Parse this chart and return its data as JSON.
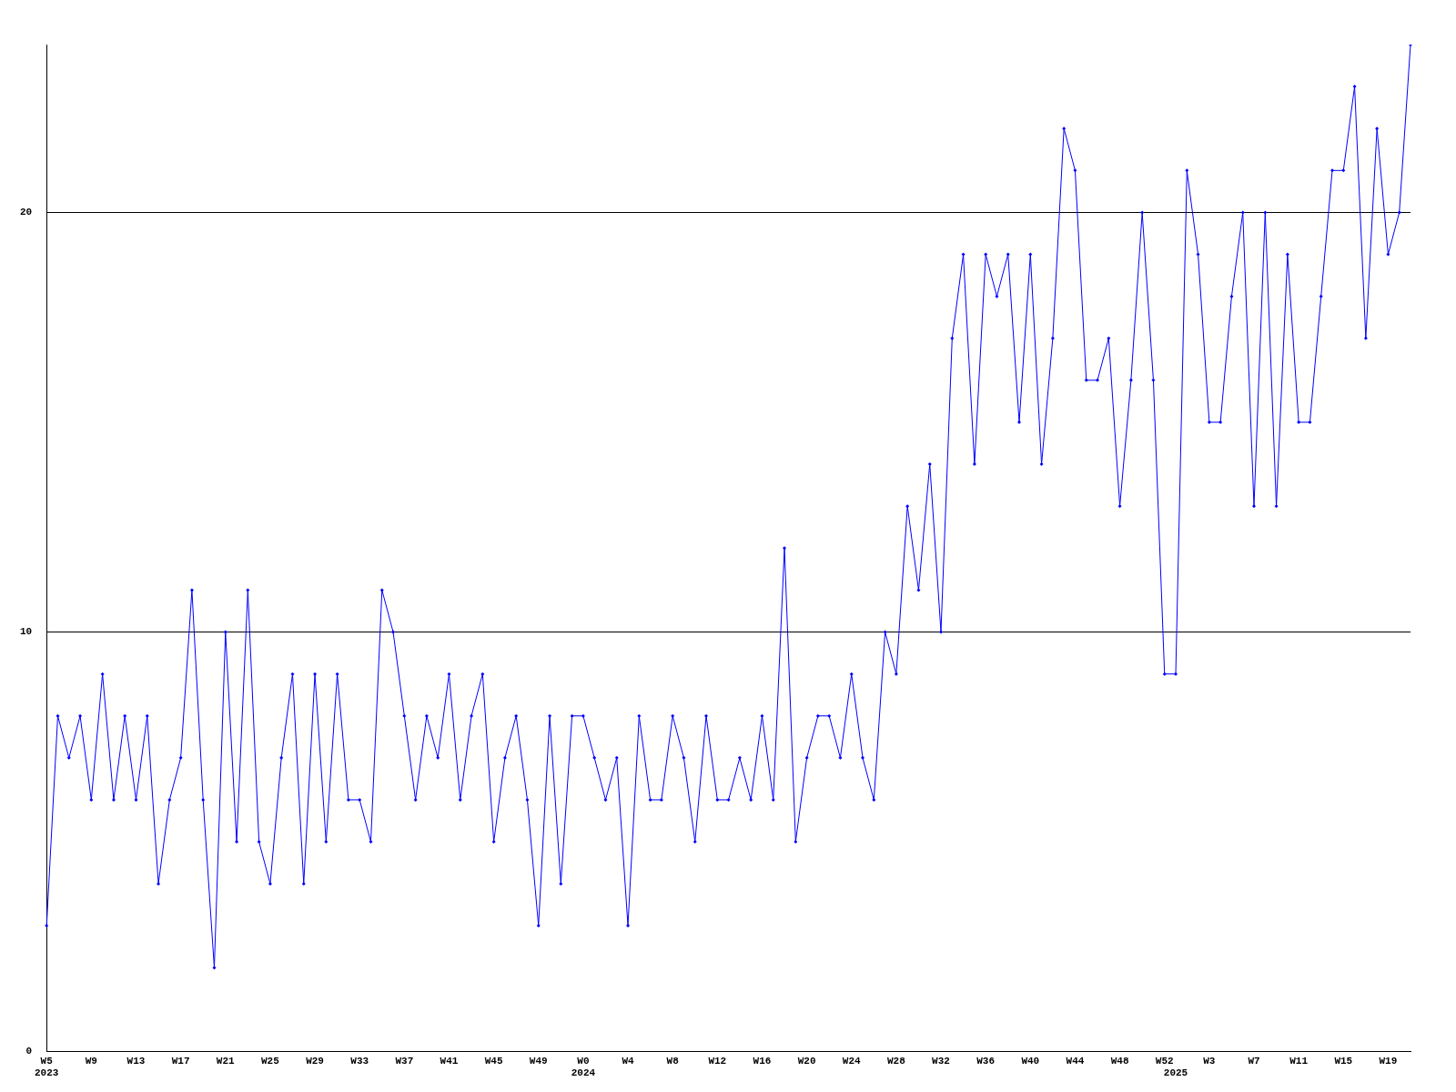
{
  "chart_data": {
    "type": "line",
    "categories": [
      "W5\n2023",
      null,
      null,
      null,
      "W9",
      null,
      null,
      null,
      "W13",
      null,
      null,
      null,
      "W17",
      null,
      null,
      null,
      "W21",
      null,
      null,
      null,
      "W25",
      null,
      null,
      null,
      "W29",
      null,
      null,
      null,
      "W33",
      null,
      null,
      null,
      "W37",
      null,
      null,
      null,
      "W41",
      null,
      null,
      null,
      "W45",
      null,
      null,
      null,
      "W49",
      null,
      null,
      null,
      "W0\n2024",
      null,
      null,
      null,
      "W4",
      null,
      null,
      null,
      "W8",
      null,
      null,
      null,
      "W12",
      null,
      null,
      null,
      "W16",
      null,
      null,
      null,
      "W20",
      null,
      null,
      null,
      "W24",
      null,
      null,
      null,
      "W28",
      null,
      null,
      null,
      "W32",
      null,
      null,
      null,
      "W36",
      null,
      null,
      null,
      "W40",
      null,
      null,
      null,
      "W44",
      null,
      null,
      null,
      "W48",
      null,
      null,
      null,
      "W52",
      "\n2025",
      null,
      null,
      "W3",
      null,
      null,
      null,
      "W7",
      null,
      null,
      null,
      "W11",
      null,
      null,
      null,
      "W15",
      null,
      null,
      null,
      "W19",
      null,
      null
    ],
    "series": [
      {
        "color": "#0000ff",
        "values": [
          3,
          8,
          7,
          8,
          6,
          9,
          6,
          8,
          6,
          8,
          4,
          6,
          7,
          11,
          6,
          2,
          10,
          5,
          11,
          5,
          4,
          7,
          9,
          4,
          9,
          5,
          9,
          6,
          6,
          5,
          11,
          10,
          8,
          6,
          8,
          7,
          9,
          6,
          8,
          9,
          5,
          7,
          8,
          6,
          3,
          8,
          4,
          8,
          8,
          7,
          6,
          7,
          3,
          8,
          6,
          6,
          8,
          7,
          5,
          8,
          6,
          6,
          7,
          6,
          8,
          6,
          12,
          5,
          7,
          8,
          8,
          7,
          9,
          7,
          6,
          10,
          9,
          13,
          11,
          14,
          10,
          17,
          19,
          14,
          19,
          18,
          19,
          15,
          19,
          14,
          17,
          22,
          21,
          16,
          16,
          17,
          13,
          16,
          20,
          16,
          9,
          9,
          21,
          19,
          15,
          15,
          18,
          20,
          13,
          20,
          13,
          19,
          15,
          15,
          18,
          21,
          21,
          23,
          17,
          22,
          19,
          20,
          24
        ]
      }
    ],
    "ylim": [
      0,
      24
    ],
    "yticks": [
      0,
      10,
      20
    ],
    "grid": "y",
    "marker": "diamond",
    "line_style": "solid",
    "legend": false
  }
}
